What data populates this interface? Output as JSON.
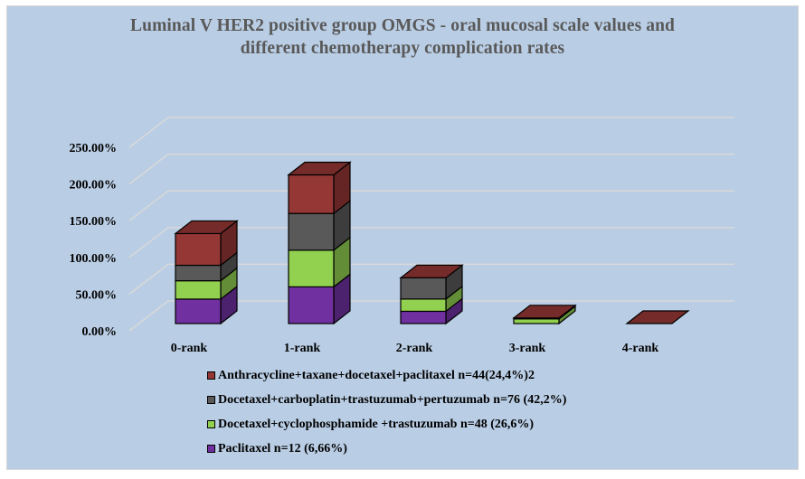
{
  "chart_data": {
    "type": "bar",
    "stacked": true,
    "three_d": true,
    "title": "Luminal V HER2 positive group OMGS - oral mucosal scale values and different chemotherapy complication rates",
    "title_lines": [
      "Luminal V HER2 positive group OMGS - oral mucosal scale values and",
      "different chemotherapy complication rates"
    ],
    "xlabel": "",
    "ylabel": "",
    "categories": [
      "0-rank",
      "1-rank",
      "2-rank",
      "3-rank",
      "4-rank"
    ],
    "ylim": [
      0,
      250
    ],
    "yticks": [
      0,
      50,
      100,
      150,
      200,
      250
    ],
    "ytick_labels": [
      "0.00%",
      "50.00%",
      "100.00%",
      "150.00%",
      "200.00%",
      "250.00%"
    ],
    "grid": true,
    "legend_position": "bottom",
    "series": [
      {
        "name": "Paclitaxel n=12 (6,66%)",
        "color": "#7030a0",
        "values": [
          33.3,
          50.0,
          16.7,
          0,
          0
        ]
      },
      {
        "name": "Docetaxel+cyclophosphamide +trastuzumab n=48 (26,6%)",
        "color": "#92d050",
        "values": [
          25.0,
          50.0,
          16.7,
          6.3,
          0
        ]
      },
      {
        "name": "Docetaxel+carboplatin+trastuzumab+pertuzumab n=76 (42,2%)",
        "color": "#595959",
        "values": [
          21.1,
          50.0,
          28.9,
          1.3,
          0
        ]
      },
      {
        "name": "Anthracycline+taxane+docetaxel+paclitaxel n=44(24,4%)2",
        "color": "#953735",
        "values": [
          43.2,
          52.6,
          0,
          0,
          0
        ]
      }
    ],
    "legend_order": [
      3,
      2,
      1,
      0
    ]
  }
}
